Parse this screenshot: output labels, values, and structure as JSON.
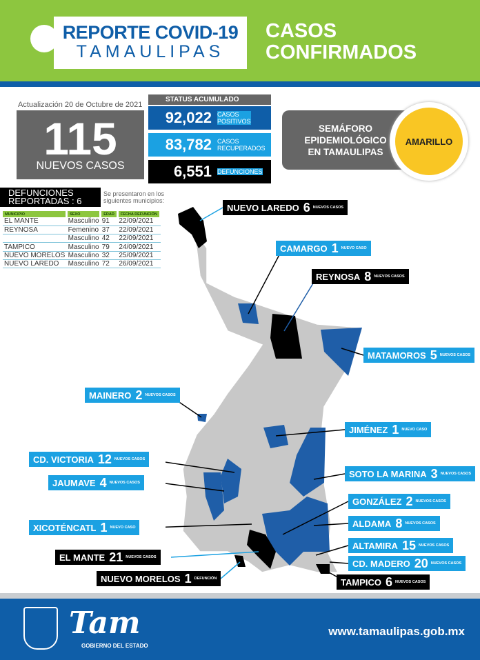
{
  "header": {
    "title_line1": "REPORTE COVID-19",
    "title_line2": "TAMAULIPAS",
    "section_line1": "CASOS",
    "section_line2": "CONFIRMADOS"
  },
  "update": "Actualización 20 de Octubre de 2021",
  "new_cases": {
    "value": "115",
    "label": "NUEVOS CASOS"
  },
  "status": {
    "title": "STATUS ACUMULADO",
    "items": [
      {
        "value": "92,022",
        "label1": "CASOS",
        "label2": "POSITIVOS",
        "color": "#0f5ea8"
      },
      {
        "value": "83,782",
        "label1": "CASOS",
        "label2": "RECUPERADOS",
        "color": "#1ba1e2"
      },
      {
        "value": "6,551",
        "label1": "DEFUNCIONES",
        "label2": "",
        "color": "#000000"
      }
    ]
  },
  "semaforo": {
    "line1": "SEMÁFORO",
    "line2": "EPIDEMIOLÓGICO",
    "line3": "EN TAMAULIPAS",
    "level": "AMARILLO",
    "color": "#f9c624"
  },
  "deaths": {
    "title1": "DEFUNCIONES",
    "title2": "REPORTADAS : 6",
    "note": "Se presentaron en los siguientes municipios:",
    "columns": [
      "MUNICIPIO",
      "SEXO",
      "EDAD",
      "FECHA DEFUNCIÓN"
    ],
    "rows": [
      [
        "EL MANTE",
        "Masculino",
        "91",
        "22/09/2021"
      ],
      [
        "REYNOSA",
        "Femenino",
        "37",
        "22/09/2021"
      ],
      [
        "",
        "Masculino",
        "42",
        "22/09/2021"
      ],
      [
        "TAMPICO",
        "Masculino",
        "79",
        "24/09/2021"
      ],
      [
        "NUEVO MORELOS",
        "Masculino",
        "32",
        "25/09/2021"
      ],
      [
        "NUEVO LAREDO",
        "Masculino",
        "72",
        "26/09/2021"
      ]
    ]
  },
  "map_labels": [
    {
      "name": "NUEVO LAREDO",
      "num": "6",
      "sub": "NUEVOS CASOS",
      "style": "black"
    },
    {
      "name": "CAMARGO",
      "num": "1",
      "sub": "NUEVO CASO",
      "style": "blue"
    },
    {
      "name": "REYNOSA",
      "num": "8",
      "sub": "NUEVOS CASOS",
      "style": "black"
    },
    {
      "name": "MATAMOROS",
      "num": "5",
      "sub": "NUEVOS CASOS",
      "style": "blue"
    },
    {
      "name": "MAINERO",
      "num": "2",
      "sub": "NUEVOS CASOS",
      "style": "blue"
    },
    {
      "name": "JIMÉNEZ",
      "num": "1",
      "sub": "NUEVO CASO",
      "style": "blue"
    },
    {
      "name": "CD. VICTORIA",
      "num": "12",
      "sub": "NUEVOS CASOS",
      "style": "blue"
    },
    {
      "name": "SOTO LA MARINA",
      "num": "3",
      "sub": "NUEVOS CASOS",
      "style": "blue"
    },
    {
      "name": "JAUMAVE",
      "num": "4",
      "sub": "NUEVOS CASOS",
      "style": "blue"
    },
    {
      "name": "GONZÁLEZ",
      "num": "2",
      "sub": "NUEVOS CASOS",
      "style": "blue"
    },
    {
      "name": "ALDAMA",
      "num": "8",
      "sub": "NUEVOS CASOS",
      "style": "blue"
    },
    {
      "name": "XICOTÉNCATL",
      "num": "1",
      "sub": "NUEVO CASO",
      "style": "blue"
    },
    {
      "name": "ALTAMIRA",
      "num": "15",
      "sub": "NUEVOS CASOS",
      "style": "blue"
    },
    {
      "name": "EL MANTE",
      "num": "21",
      "sub": "NUEVOS CASOS",
      "style": "black"
    },
    {
      "name": "CD. MADERO",
      "num": "20",
      "sub": "NUEVOS CASOS",
      "style": "blue"
    },
    {
      "name": "NUEVO MORELOS",
      "num": "1",
      "sub": "DEFUNCIÓN",
      "style": "black"
    },
    {
      "name": "TAMPICO",
      "num": "6",
      "sub": "NUEVOS CASOS",
      "style": "black"
    }
  ],
  "footer": {
    "logo": "Tam",
    "gov": "GOBIERNO DEL ESTADO",
    "url": "www.tamaulipas.gob.mx"
  }
}
